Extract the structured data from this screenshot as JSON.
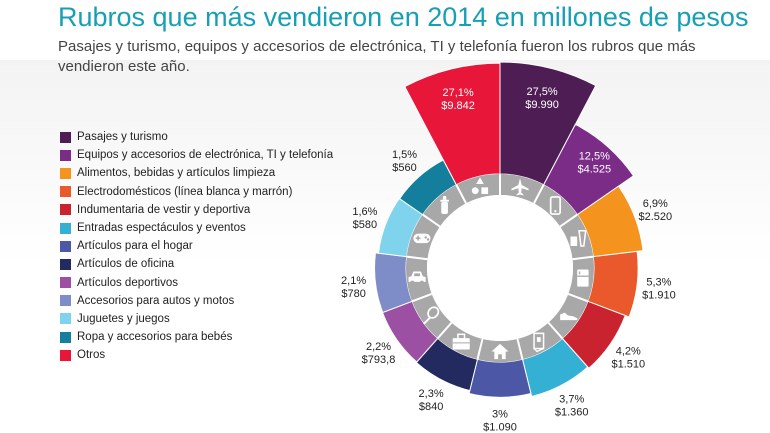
{
  "header": {
    "title": "Rubros que más vendieron en 2014 en millones de pesos",
    "subtitle": "Pasajes y turismo, equipos y accesorios de electrónica, TI y telefonía fueron los rubros que más vendieron este año."
  },
  "chart_data": {
    "type": "pie",
    "variant": "polar-area donut",
    "legend_position": "left",
    "categories": [
      {
        "name": "Pasajes y turismo",
        "percent": 27.5,
        "value": 9990,
        "pct_label": "27,5%",
        "value_label": "$9.990",
        "color": "#4e1d54",
        "icon": "airplane-icon"
      },
      {
        "name": "Equipos y accesorios de electrónica, TI y telefonía",
        "percent": 12.5,
        "value": 4525,
        "pct_label": "12,5%",
        "value_label": "$4.525",
        "color": "#7a2c87",
        "icon": "smartphone-icon"
      },
      {
        "name": "Alimentos, bebidas  y artículos limpieza",
        "percent": 6.9,
        "value": 2520,
        "pct_label": "6,9%",
        "value_label": "$2.520",
        "color": "#f4931e",
        "icon": "food-drink-icon"
      },
      {
        "name": "Electrodomésticos  (línea blanca y marrón)",
        "percent": 5.3,
        "value": 1910,
        "pct_label": "5,3%",
        "value_label": "$1.910",
        "color": "#e9592b",
        "icon": "refrigerator-icon"
      },
      {
        "name": "Indumentaria de vestir y deportiva",
        "percent": 4.2,
        "value": 1510,
        "pct_label": "4,2%",
        "value_label": "$1.510",
        "color": "#c8232f",
        "icon": "sneaker-icon"
      },
      {
        "name": "Entradas espectáculos y eventos",
        "percent": 3.7,
        "value": 1360,
        "pct_label": "3,7%",
        "value_label": "$1.360",
        "color": "#33b0d3",
        "icon": "ticket-icon"
      },
      {
        "name": "Artículos para el hogar",
        "percent": 3.0,
        "value": 1090,
        "pct_label": "3%",
        "value_label": "$1.090",
        "color": "#4c58a6",
        "icon": "house-icon"
      },
      {
        "name": "Artículos de oficina",
        "percent": 2.3,
        "value": 840,
        "pct_label": "2,3%",
        "value_label": "$840",
        "color": "#222a5f",
        "icon": "briefcase-icon"
      },
      {
        "name": "Artículos deportivos",
        "percent": 2.2,
        "value": 793.8,
        "pct_label": "2,2%",
        "value_label": "$793,8",
        "color": "#9c50a4",
        "icon": "tennis-racket-icon"
      },
      {
        "name": "Accesorios para autos y motos",
        "percent": 2.1,
        "value": 780,
        "pct_label": "2,1%",
        "value_label": "$780",
        "color": "#7e8cc8",
        "icon": "car-icon"
      },
      {
        "name": "Juguetes y juegos",
        "percent": 1.6,
        "value": 580,
        "pct_label": "1,6%",
        "value_label": "$580",
        "color": "#7fd3ec",
        "icon": "gamepad-icon"
      },
      {
        "name": "Ropa y accesorios para bebés",
        "percent": 1.5,
        "value": 560,
        "pct_label": "1,5%",
        "value_label": "$560",
        "color": "#147f9c",
        "icon": "baby-bottle-icon"
      },
      {
        "name": "Otros",
        "percent": 27.1,
        "value": 9842,
        "pct_label": "27,1%",
        "value_label": "$9.842",
        "color": "#e8173a",
        "icon": "shapes-icon"
      }
    ]
  }
}
